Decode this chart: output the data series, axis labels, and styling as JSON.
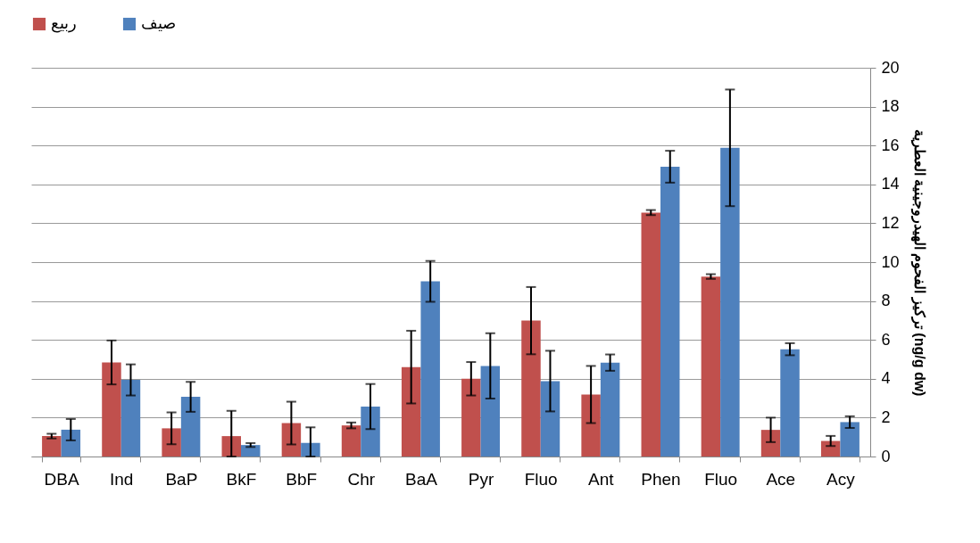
{
  "chart_data": {
    "type": "bar",
    "categories": [
      "DBA",
      "Ind",
      "BaP",
      "BkF",
      "BbF",
      "Chr",
      "BaA",
      "Pyr",
      "Fluo",
      "Ant",
      "Phen",
      "Fluo",
      "Ace",
      "Acy"
    ],
    "series": [
      {
        "name": "ربيع",
        "color": "#c0504d",
        "values": [
          1.05,
          4.84,
          1.45,
          1.05,
          1.72,
          1.6,
          4.6,
          4.0,
          6.99,
          3.19,
          12.55,
          9.26,
          1.37,
          0.8
        ],
        "errors": [
          0.12,
          1.13,
          0.82,
          [
            0,
            2.35
          ],
          1.1,
          0.15,
          1.87,
          0.86,
          1.73,
          1.47,
          0.13,
          0.12,
          0.63,
          0.26
        ]
      },
      {
        "name": "صيف",
        "color": "#4f81bd",
        "values": [
          1.38,
          3.94,
          3.07,
          0.59,
          0.7,
          2.57,
          9.01,
          4.66,
          3.88,
          4.83,
          14.91,
          15.88,
          5.52,
          1.77
        ],
        "errors": [
          0.55,
          0.8,
          0.77,
          0.1,
          [
            0,
            1.5
          ],
          1.16,
          1.05,
          1.68,
          1.56,
          0.42,
          0.82,
          3.0,
          0.31,
          0.3
        ]
      }
    ],
    "ylabel": "تركيز الفحوم الهيدروجينية العطرية (ng/g dw)",
    "ylim": [
      0,
      20
    ],
    "yticks": [
      0,
      2,
      4,
      6,
      8,
      10,
      12,
      14,
      16,
      18,
      20
    ],
    "grid": "y",
    "legend": "top"
  }
}
